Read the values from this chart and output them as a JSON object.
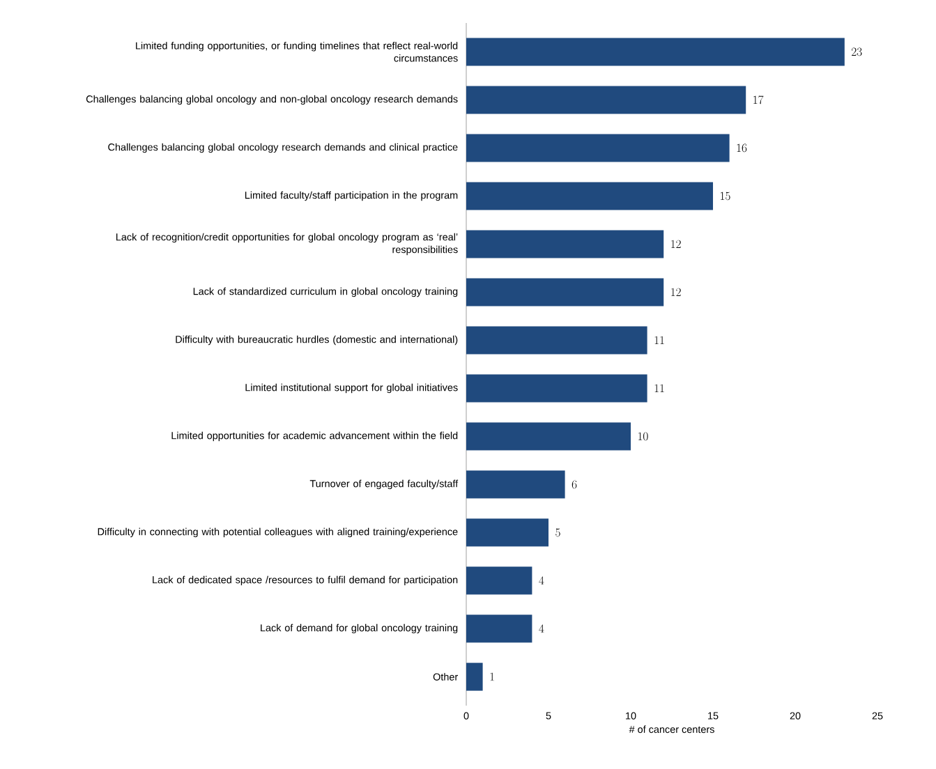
{
  "chart_data": {
    "type": "bar",
    "orientation": "horizontal",
    "categories": [
      "Limited funding opportunities, or funding timelines that reflect real-world circumstances",
      "Challenges balancing global oncology and non-global oncology research demands",
      "Challenges balancing global oncology research demands and clinical practice",
      "Limited faculty/staff participation in the program",
      "Lack of recognition/credit opportunities for global oncology program as ‘real’ responsibilities",
      "Lack of standardized curriculum in global oncology training",
      "Difficulty with bureaucratic hurdles (domestic and international)",
      "Limited institutional support for global initiatives",
      "Limited opportunities for academic advancement within the field",
      "Turnover of engaged faculty/staff",
      "Difficulty in connecting with potential colleagues with aligned training/experience",
      "Lack of dedicated space /resources to fulfil demand for participation",
      "Lack of demand for global oncology training",
      "Other"
    ],
    "values": [
      23,
      17,
      16,
      15,
      12,
      12,
      11,
      11,
      10,
      6,
      5,
      4,
      4,
      1
    ],
    "color": "#204a7e",
    "xlim": [
      0,
      25
    ],
    "xticks": [
      0,
      5,
      10,
      15,
      20,
      25
    ],
    "xlabel": "# of cancer centers",
    "data_labels": true
  }
}
